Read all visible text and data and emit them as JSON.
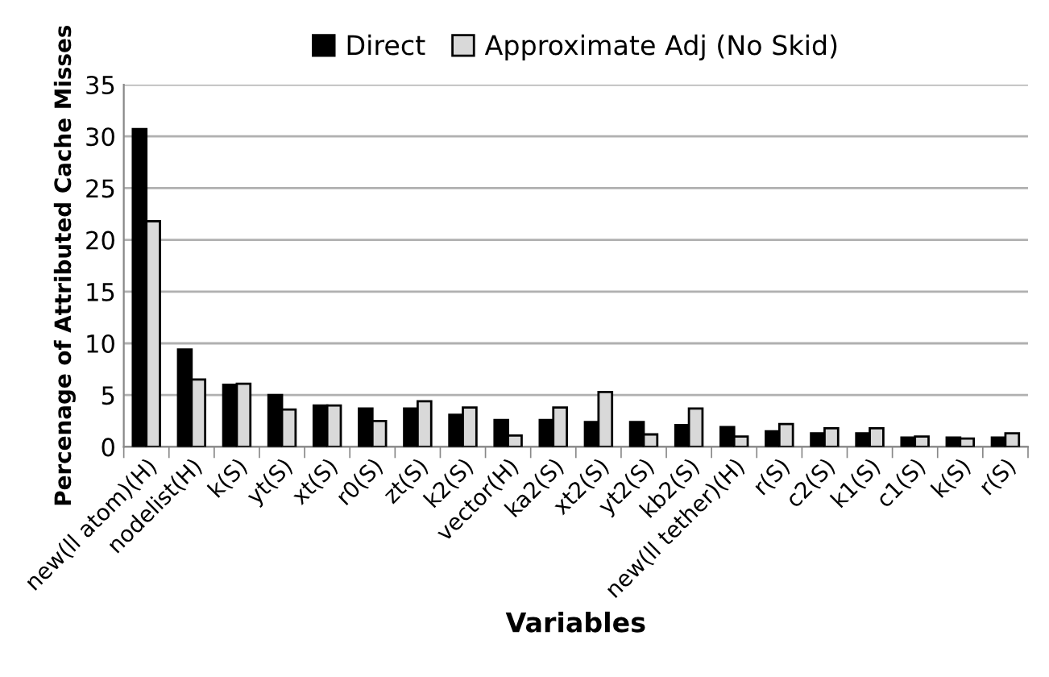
{
  "chart_data": {
    "type": "bar",
    "xlabel": "Variables",
    "ylabel": "Percenage of Attributed Cache Misses",
    "categories": [
      "new(ll atom)(H)",
      "nodelist(H)",
      "k(S)",
      "yt(S)",
      "xt(S)",
      "r0(S)",
      "zt(S)",
      "k2(S)",
      "vector(H)",
      "ka2(S)",
      "xt2(S)",
      "yt2(S)",
      "kb2(S)",
      "new(ll tether)(H)",
      "r(S)",
      "c2(S)",
      "k1(S)",
      "c1(S)",
      "k(S)",
      "r(S)"
    ],
    "series": [
      {
        "name": "Direct",
        "color": "#000000",
        "values": [
          30.7,
          9.4,
          6.0,
          5.0,
          4.0,
          3.7,
          3.7,
          3.1,
          2.6,
          2.6,
          2.4,
          2.4,
          2.1,
          1.9,
          1.5,
          1.3,
          1.3,
          0.9,
          0.9,
          0.9
        ]
      },
      {
        "name": "Approximate Adj (No Skid)",
        "color": "#d9d9d9",
        "values": [
          21.8,
          6.5,
          6.1,
          3.6,
          4.0,
          2.5,
          4.4,
          3.8,
          1.1,
          3.8,
          5.3,
          1.2,
          3.7,
          1.0,
          2.2,
          1.8,
          1.8,
          1.0,
          0.8,
          1.3
        ]
      }
    ],
    "ylim": [
      0,
      35
    ],
    "yticks": [
      0,
      5,
      10,
      15,
      20,
      25,
      30,
      35
    ],
    "grid": "y",
    "legend": "top"
  }
}
